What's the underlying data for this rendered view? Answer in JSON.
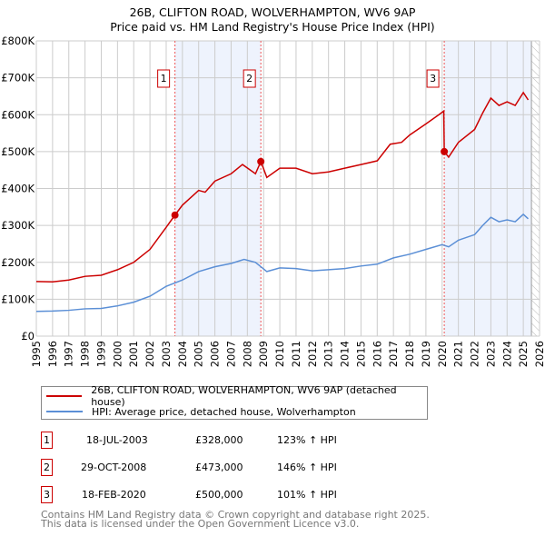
{
  "title": "26B, CLIFTON ROAD, WOLVERHAMPTON, WV6 9AP",
  "subtitle": "Price paid vs. HM Land Registry's House Price Index (HPI)",
  "chart_data": {
    "type": "line",
    "title": "26B, CLIFTON ROAD, WOLVERHAMPTON, WV6 9AP",
    "subtitle": "Price paid vs. HM Land Registry's House Price Index (HPI)",
    "xlim": [
      1995,
      2026
    ],
    "ylim": [
      0,
      800000
    ],
    "x_ticks": [
      "1995",
      "1996",
      "1997",
      "1998",
      "1999",
      "2000",
      "2001",
      "2002",
      "2003",
      "2004",
      "2005",
      "2006",
      "2007",
      "2008",
      "2009",
      "2010",
      "2011",
      "2012",
      "2013",
      "2014",
      "2015",
      "2016",
      "2017",
      "2018",
      "2019",
      "2020",
      "2021",
      "2022",
      "2023",
      "2024",
      "2025",
      "2026"
    ],
    "y_ticks": [
      "£0",
      "£100K",
      "£200K",
      "£300K",
      "£400K",
      "£500K",
      "£600K",
      "£700K",
      "£800K"
    ],
    "grid": true,
    "series": [
      {
        "name": "26B, CLIFTON ROAD, WOLVERHAMPTON, WV6 9AP (detached house)",
        "color": "#cc0000",
        "x": [
          1995,
          1996,
          1997,
          1998,
          1999,
          2000,
          2001,
          2002,
          2003,
          2003.54,
          2004,
          2005,
          2005.4,
          2006,
          2007,
          2007.7,
          2008.5,
          2008.83,
          2009.2,
          2010,
          2011,
          2012,
          2013,
          2014,
          2015,
          2016,
          2016.8,
          2017.5,
          2018,
          2019,
          2019.8,
          2020.1,
          2020.13,
          2020.4,
          2021,
          2022,
          2022.5,
          2023,
          2023.5,
          2024,
          2024.5,
          2025,
          2025.3
        ],
        "y": [
          148000,
          147000,
          152000,
          162000,
          165000,
          180000,
          200000,
          235000,
          295000,
          328000,
          355000,
          395000,
          390000,
          420000,
          440000,
          465000,
          440000,
          473000,
          430000,
          455000,
          455000,
          440000,
          445000,
          455000,
          465000,
          475000,
          520000,
          525000,
          545000,
          575000,
          600000,
          610000,
          500000,
          485000,
          525000,
          560000,
          605000,
          645000,
          625000,
          635000,
          625000,
          660000,
          640000
        ]
      },
      {
        "name": "HPI: Average price, detached house, Wolverhampton",
        "color": "#5b8fd6",
        "x": [
          1995,
          1996,
          1997,
          1998,
          1999,
          2000,
          2001,
          2002,
          2003,
          2004,
          2005,
          2006,
          2007,
          2007.8,
          2008.5,
          2009.2,
          2010,
          2011,
          2012,
          2013,
          2014,
          2015,
          2016,
          2017,
          2018,
          2019,
          2020,
          2020.4,
          2021,
          2022,
          2022.5,
          2023,
          2023.5,
          2024,
          2024.5,
          2025,
          2025.3
        ],
        "y": [
          67000,
          68000,
          70000,
          74000,
          75000,
          82000,
          92000,
          108000,
          135000,
          152000,
          175000,
          188000,
          197000,
          208000,
          200000,
          175000,
          185000,
          183000,
          177000,
          180000,
          183000,
          190000,
          195000,
          212000,
          222000,
          235000,
          248000,
          242000,
          260000,
          275000,
          300000,
          322000,
          310000,
          315000,
          310000,
          330000,
          318000
        ]
      }
    ],
    "sales": [
      {
        "label": "1",
        "x": 2003.54,
        "date": "18-JUL-2003",
        "price": "£328,000",
        "value": 328000,
        "hpi": "123% ↑ HPI"
      },
      {
        "label": "2",
        "x": 2008.83,
        "date": "29-OCT-2008",
        "price": "£473,000",
        "value": 473000,
        "hpi": "146% ↑ HPI"
      },
      {
        "label": "3",
        "x": 2020.13,
        "date": "18-FEB-2020",
        "price": "£500,000",
        "value": 500000,
        "hpi": "101% ↑ HPI"
      }
    ],
    "shaded": [
      [
        2003.54,
        2008.83
      ],
      [
        2020.13,
        2025.5
      ]
    ],
    "future_from": 2025.5
  },
  "legend": {
    "red": "26B, CLIFTON ROAD, WOLVERHAMPTON, WV6 9AP (detached house)",
    "blue": "HPI: Average price, detached house, Wolverhampton"
  },
  "footer": {
    "line1": "Contains HM Land Registry data © Crown copyright and database right 2025.",
    "line2": "This data is licensed under the Open Government Licence v3.0."
  }
}
